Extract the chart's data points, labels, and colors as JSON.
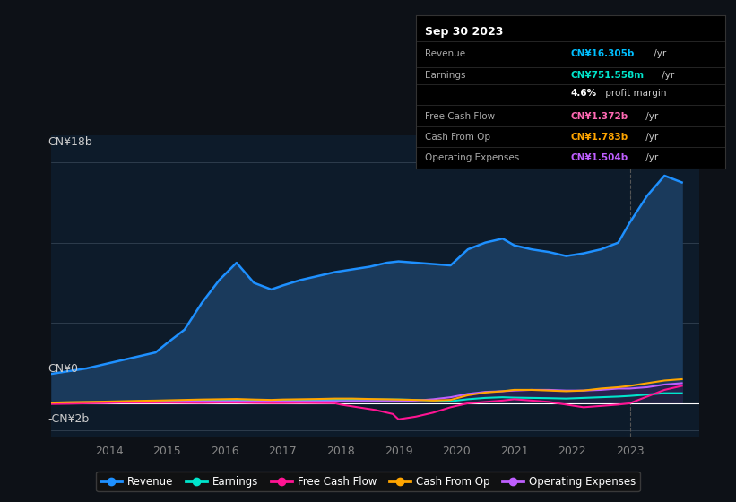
{
  "background_color": "#0d1117",
  "plot_bg_color": "#0d1b2a",
  "title_box": {
    "date": "Sep 30 2023",
    "rows": [
      {
        "label": "Revenue",
        "value": "CN¥16.305b",
        "unit": "/yr",
        "value_color": "#00bfff"
      },
      {
        "label": "Earnings",
        "value": "CN¥751.558m",
        "unit": "/yr",
        "value_color": "#00e5cc"
      },
      {
        "label": "",
        "value": "4.6%",
        "unit": " profit margin",
        "value_color": "#ffffff"
      },
      {
        "label": "Free Cash Flow",
        "value": "CN¥1.372b",
        "unit": "/yr",
        "value_color": "#ff69b4"
      },
      {
        "label": "Cash From Op",
        "value": "CN¥1.783b",
        "unit": "/yr",
        "value_color": "#ffa500"
      },
      {
        "label": "Operating Expenses",
        "value": "CN¥1.504b",
        "unit": "/yr",
        "value_color": "#bf5fff"
      }
    ]
  },
  "y_label_top": "CN¥18b",
  "y_label_zero": "CN¥0",
  "y_label_neg": "-CN¥2b",
  "ylim": [
    -2.5,
    20
  ],
  "series": {
    "Revenue": {
      "color": "#1e90ff",
      "fill_color": "#1a3a5c",
      "data_x": [
        2013.0,
        2013.3,
        2013.6,
        2013.9,
        2014.2,
        2014.5,
        2014.8,
        2015.0,
        2015.3,
        2015.6,
        2015.9,
        2016.2,
        2016.5,
        2016.8,
        2017.0,
        2017.3,
        2017.6,
        2017.9,
        2018.2,
        2018.5,
        2018.8,
        2019.0,
        2019.3,
        2019.6,
        2019.9,
        2020.2,
        2020.5,
        2020.8,
        2021.0,
        2021.3,
        2021.6,
        2021.9,
        2022.2,
        2022.5,
        2022.8,
        2023.0,
        2023.3,
        2023.6,
        2023.9
      ],
      "data_y": [
        2.2,
        2.4,
        2.6,
        2.9,
        3.2,
        3.5,
        3.8,
        4.5,
        5.5,
        7.5,
        9.2,
        10.5,
        9.0,
        8.5,
        8.8,
        9.2,
        9.5,
        9.8,
        10.0,
        10.2,
        10.5,
        10.6,
        10.5,
        10.4,
        10.3,
        11.5,
        12.0,
        12.3,
        11.8,
        11.5,
        11.3,
        11.0,
        11.2,
        11.5,
        12.0,
        13.5,
        15.5,
        17.0,
        16.5
      ]
    },
    "Earnings": {
      "color": "#00e5cc",
      "fill_color": "#003d35",
      "data_x": [
        2013.0,
        2013.3,
        2013.6,
        2013.9,
        2014.2,
        2014.5,
        2014.8,
        2015.0,
        2015.3,
        2015.6,
        2015.9,
        2016.2,
        2016.5,
        2016.8,
        2017.0,
        2017.3,
        2017.6,
        2017.9,
        2018.2,
        2018.5,
        2018.8,
        2019.0,
        2019.3,
        2019.6,
        2019.9,
        2020.2,
        2020.5,
        2020.8,
        2021.0,
        2021.3,
        2021.6,
        2021.9,
        2022.2,
        2022.5,
        2022.8,
        2023.0,
        2023.3,
        2023.6,
        2023.9
      ],
      "data_y": [
        0.05,
        0.06,
        0.07,
        0.08,
        0.1,
        0.12,
        0.13,
        0.15,
        0.18,
        0.2,
        0.22,
        0.25,
        0.2,
        0.18,
        0.2,
        0.22,
        0.25,
        0.27,
        0.28,
        0.28,
        0.28,
        0.28,
        0.25,
        0.2,
        0.15,
        0.3,
        0.4,
        0.45,
        0.42,
        0.4,
        0.38,
        0.35,
        0.4,
        0.45,
        0.5,
        0.55,
        0.65,
        0.75,
        0.75
      ]
    },
    "Free Cash Flow": {
      "color": "#ff1493",
      "data_x": [
        2013.0,
        2013.3,
        2013.6,
        2013.9,
        2014.2,
        2014.5,
        2014.8,
        2015.0,
        2015.3,
        2015.6,
        2015.9,
        2016.2,
        2016.5,
        2016.8,
        2017.0,
        2017.3,
        2017.6,
        2017.9,
        2018.0,
        2018.3,
        2018.6,
        2018.9,
        2019.0,
        2019.3,
        2019.6,
        2019.9,
        2020.2,
        2020.5,
        2020.8,
        2021.0,
        2021.3,
        2021.6,
        2021.9,
        2022.2,
        2022.5,
        2022.8,
        2023.0,
        2023.3,
        2023.6,
        2023.9
      ],
      "data_y": [
        -0.05,
        -0.03,
        0.0,
        0.02,
        0.05,
        0.05,
        0.05,
        0.05,
        0.04,
        0.03,
        0.05,
        0.05,
        0.03,
        0.02,
        0.02,
        0.03,
        0.02,
        0.01,
        -0.1,
        -0.3,
        -0.5,
        -0.8,
        -1.2,
        -1.0,
        -0.7,
        -0.3,
        0.0,
        0.1,
        0.2,
        0.3,
        0.2,
        0.1,
        -0.1,
        -0.3,
        -0.2,
        -0.1,
        0.0,
        0.5,
        1.0,
        1.3
      ]
    },
    "Cash From Op": {
      "color": "#ffa500",
      "data_x": [
        2013.0,
        2013.3,
        2013.6,
        2013.9,
        2014.2,
        2014.5,
        2014.8,
        2015.0,
        2015.3,
        2015.6,
        2015.9,
        2016.2,
        2016.5,
        2016.8,
        2017.0,
        2017.3,
        2017.6,
        2017.9,
        2018.2,
        2018.5,
        2018.8,
        2019.0,
        2019.3,
        2019.6,
        2019.9,
        2020.2,
        2020.5,
        2020.8,
        2021.0,
        2021.3,
        2021.6,
        2021.9,
        2022.2,
        2022.5,
        2022.8,
        2023.0,
        2023.3,
        2023.6,
        2023.9
      ],
      "data_y": [
        0.05,
        0.08,
        0.1,
        0.12,
        0.15,
        0.18,
        0.2,
        0.22,
        0.25,
        0.28,
        0.3,
        0.32,
        0.28,
        0.25,
        0.28,
        0.3,
        0.32,
        0.35,
        0.35,
        0.32,
        0.3,
        0.28,
        0.25,
        0.2,
        0.25,
        0.6,
        0.8,
        0.9,
        1.0,
        1.0,
        0.95,
        0.9,
        0.95,
        1.1,
        1.2,
        1.3,
        1.5,
        1.7,
        1.8
      ]
    },
    "Operating Expenses": {
      "color": "#bf5fff",
      "fill_color": "#2d1a4a",
      "data_x": [
        2013.0,
        2013.3,
        2013.6,
        2013.9,
        2014.2,
        2014.5,
        2014.8,
        2015.0,
        2015.3,
        2015.6,
        2015.9,
        2016.2,
        2016.5,
        2016.8,
        2017.0,
        2017.3,
        2017.6,
        2017.9,
        2018.2,
        2018.5,
        2018.8,
        2019.0,
        2019.3,
        2019.6,
        2019.9,
        2020.2,
        2020.5,
        2020.8,
        2021.0,
        2021.3,
        2021.6,
        2021.9,
        2022.2,
        2022.5,
        2022.8,
        2023.0,
        2023.3,
        2023.6,
        2023.9
      ],
      "data_y": [
        0.02,
        0.03,
        0.04,
        0.05,
        0.07,
        0.08,
        0.09,
        0.1,
        0.12,
        0.13,
        0.14,
        0.15,
        0.13,
        0.12,
        0.13,
        0.14,
        0.15,
        0.16,
        0.17,
        0.17,
        0.17,
        0.17,
        0.2,
        0.3,
        0.45,
        0.7,
        0.85,
        0.9,
        0.95,
        1.0,
        1.0,
        0.95,
        0.95,
        1.0,
        1.1,
        1.1,
        1.2,
        1.4,
        1.5
      ]
    }
  },
  "legend": [
    {
      "label": "Revenue",
      "color": "#1e90ff"
    },
    {
      "label": "Earnings",
      "color": "#00e5cc"
    },
    {
      "label": "Free Cash Flow",
      "color": "#ff1493"
    },
    {
      "label": "Cash From Op",
      "color": "#ffa500"
    },
    {
      "label": "Operating Expenses",
      "color": "#bf5fff"
    }
  ],
  "box_rows": [
    {
      "label": "Revenue",
      "value": "CN¥16.305b",
      "unit": " /yr",
      "value_color": "#00bfff"
    },
    {
      "label": "Earnings",
      "value": "CN¥751.558m",
      "unit": " /yr",
      "value_color": "#00e5cc"
    },
    {
      "label": "",
      "value": "4.6%",
      "unit": " profit margin",
      "value_color": "#ffffff"
    },
    {
      "label": "Free Cash Flow",
      "value": "CN¥1.372b",
      "unit": " /yr",
      "value_color": "#ff69b4"
    },
    {
      "label": "Cash From Op",
      "value": "CN¥1.783b",
      "unit": " /yr",
      "value_color": "#ffa500"
    },
    {
      "label": "Operating Expenses",
      "value": "CN¥1.504b",
      "unit": " /yr",
      "value_color": "#bf5fff"
    }
  ]
}
